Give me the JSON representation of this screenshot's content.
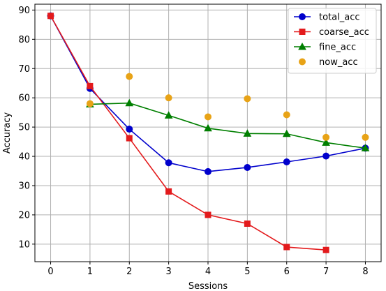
{
  "chart_data": {
    "type": "line",
    "xlabel": "Sessions",
    "ylabel": "Accuracy",
    "x_ticks": [
      0,
      1,
      2,
      3,
      4,
      5,
      6,
      7,
      8
    ],
    "y_ticks": [
      10,
      20,
      30,
      40,
      50,
      60,
      70,
      80,
      90
    ],
    "xlim": [
      -0.4,
      8.4
    ],
    "ylim": [
      4,
      92
    ],
    "grid": true,
    "legend_position": "top-right",
    "series": [
      {
        "name": "total_acc",
        "kind": "line",
        "color": "#0000cc",
        "marker": "circle",
        "x": [
          0,
          1,
          2,
          3,
          4,
          5,
          6,
          7,
          8
        ],
        "y": [
          88,
          63.2,
          49.3,
          37.8,
          34.8,
          36.2,
          38.1,
          40.1,
          42.8
        ]
      },
      {
        "name": "coarse_acc",
        "kind": "line",
        "color": "#e31a1c",
        "marker": "square",
        "x": [
          0,
          1,
          2,
          3,
          4,
          5,
          6,
          7
        ],
        "y": [
          88,
          64,
          46.2,
          28,
          20,
          17,
          9,
          8
        ]
      },
      {
        "name": "fine_acc",
        "kind": "line",
        "color": "#007f00",
        "marker": "triangle",
        "x": [
          1,
          2,
          3,
          4,
          5,
          6,
          7,
          8
        ],
        "y": [
          57.8,
          58.2,
          54,
          49.6,
          47.8,
          47.7,
          44.7,
          42.8
        ]
      },
      {
        "name": "now_acc",
        "kind": "scatter",
        "color": "#e8a317",
        "marker": "circle",
        "x": [
          1,
          2,
          3,
          4,
          5,
          6,
          7,
          8
        ],
        "y": [
          58,
          67.3,
          60,
          53.5,
          59.7,
          54.2,
          46.5,
          46.5
        ]
      }
    ]
  }
}
